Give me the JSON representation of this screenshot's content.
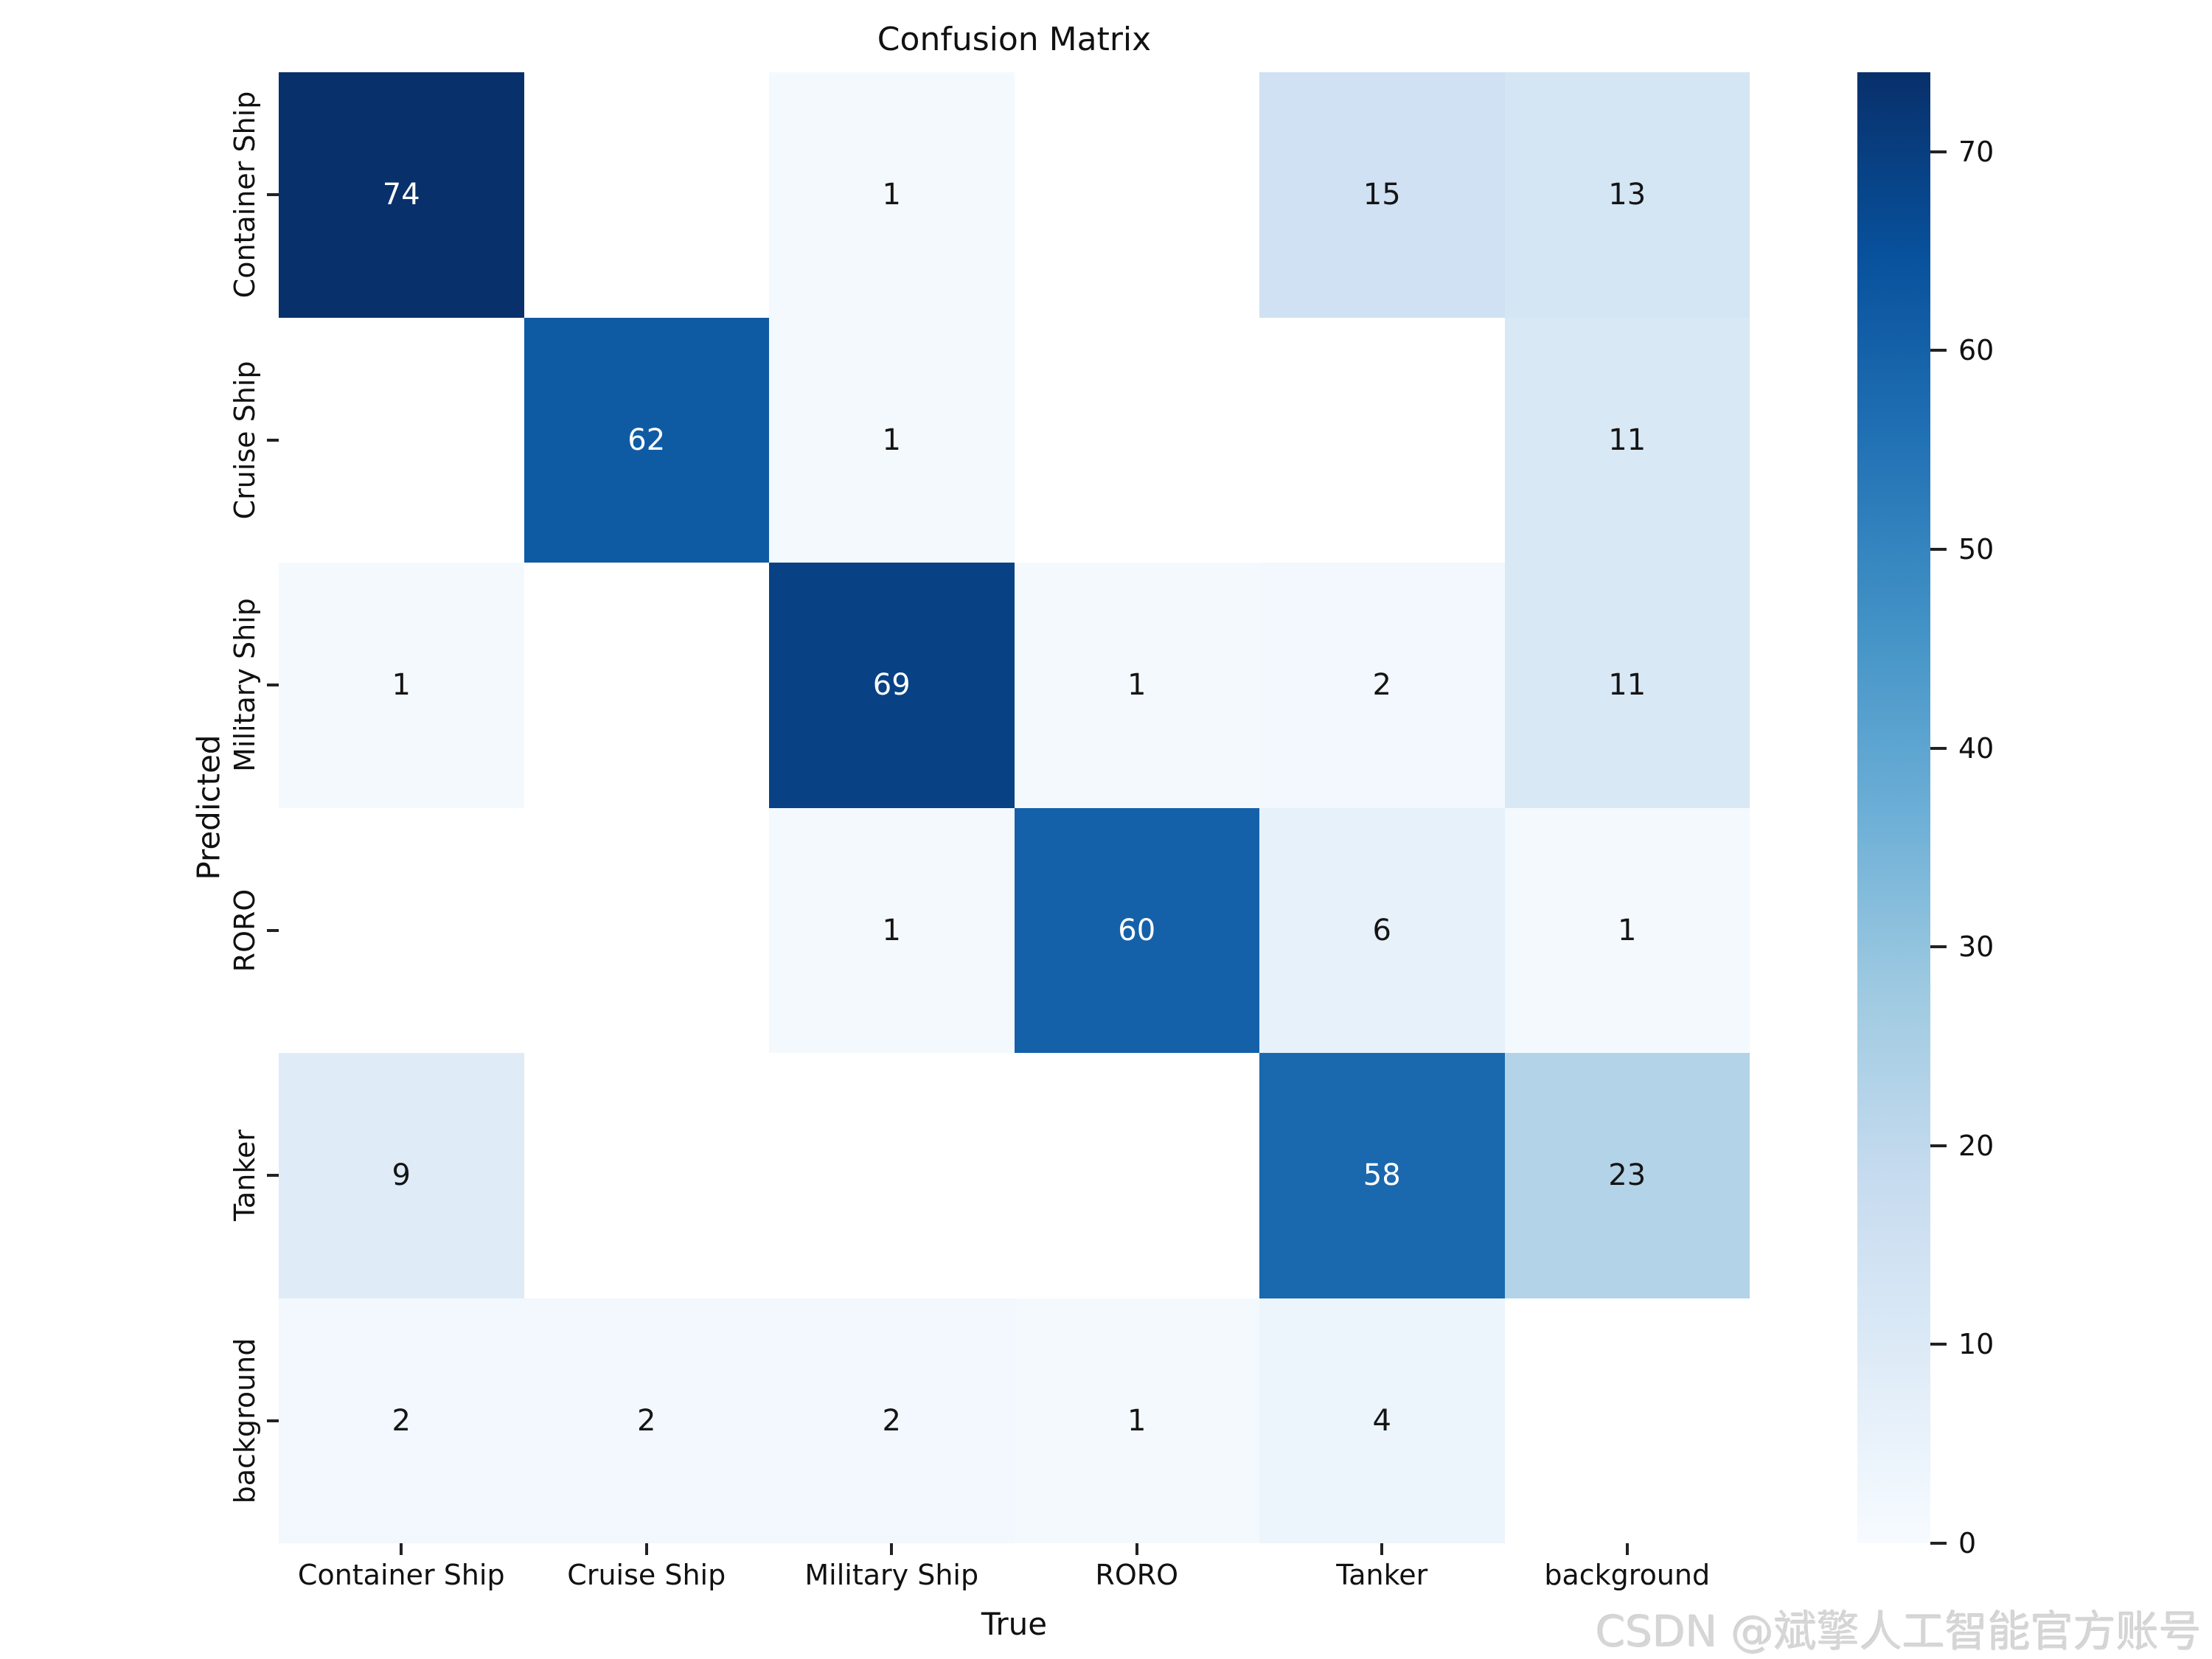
{
  "chart_data": {
    "type": "heatmap",
    "title": "Confusion Matrix",
    "xlabel": "True",
    "ylabel": "Predicted",
    "x_categories": [
      "Container Ship",
      "Cruise Ship",
      "Military Ship",
      "RORO",
      "Tanker",
      "background"
    ],
    "y_categories": [
      "Container Ship",
      "Cruise Ship",
      "Military Ship",
      "RORO",
      "Tanker",
      "background"
    ],
    "matrix": [
      [
        74,
        null,
        1,
        null,
        15,
        13
      ],
      [
        null,
        62,
        1,
        null,
        null,
        11
      ],
      [
        1,
        null,
        69,
        1,
        2,
        11
      ],
      [
        null,
        null,
        1,
        60,
        6,
        1
      ],
      [
        9,
        null,
        null,
        null,
        58,
        23
      ],
      [
        2,
        2,
        2,
        1,
        4,
        null
      ]
    ],
    "vmin": 0,
    "vmax": 74,
    "colorbar_ticks": [
      0,
      10,
      20,
      30,
      40,
      50,
      60,
      70
    ],
    "colormap": "Blues",
    "colormap_stops": [
      {
        "pos": 0.0,
        "color": "#f7fbff"
      },
      {
        "pos": 0.125,
        "color": "#deebf7"
      },
      {
        "pos": 0.25,
        "color": "#c6dbef"
      },
      {
        "pos": 0.375,
        "color": "#9ecae1"
      },
      {
        "pos": 0.5,
        "color": "#6baed6"
      },
      {
        "pos": 0.625,
        "color": "#4292c6"
      },
      {
        "pos": 0.75,
        "color": "#2171b5"
      },
      {
        "pos": 0.875,
        "color": "#08519c"
      },
      {
        "pos": 1.0,
        "color": "#08306b"
      }
    ],
    "empty_cell_color": "#ffffff",
    "annotation_colors": {
      "on_dark": "#ffffff",
      "on_light": "#151515"
    },
    "grid": false,
    "legend_position": "colorbar-right"
  },
  "watermark": {
    "text": "CSDN @斌擎人工智能官方账号"
  }
}
